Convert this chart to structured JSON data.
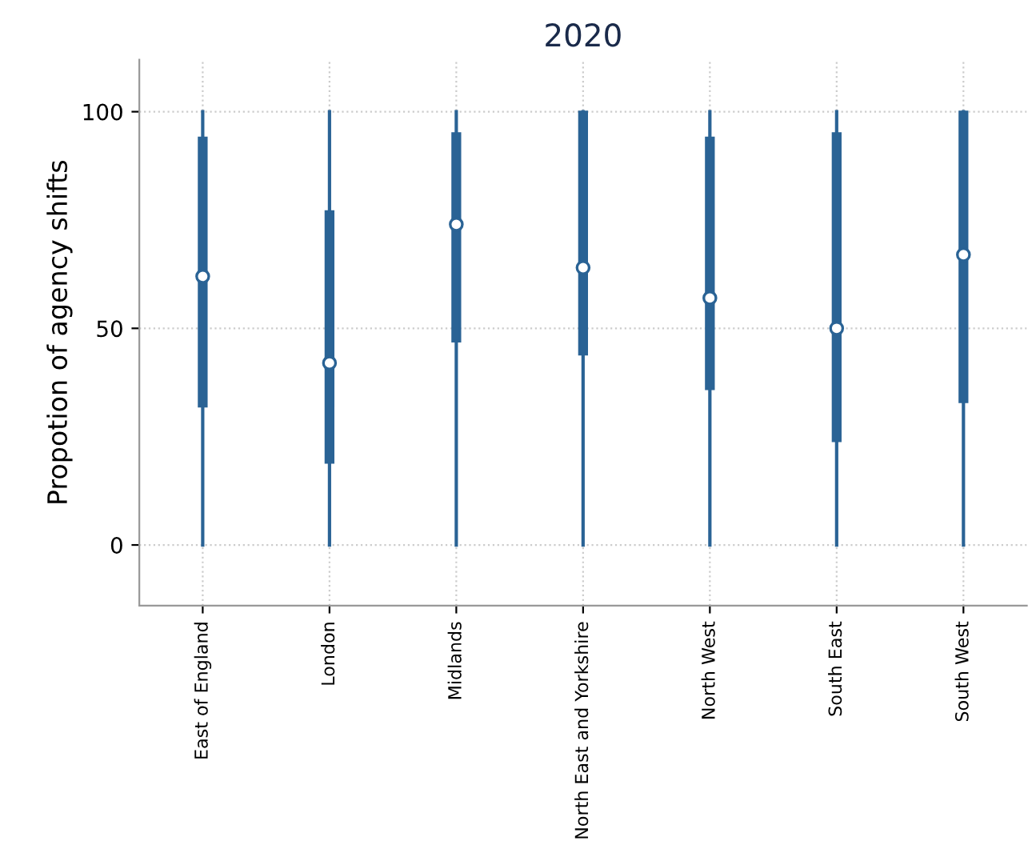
{
  "chart_data": {
    "type": "box",
    "title": "2020",
    "ylabel": "Propotion of agency shifts",
    "categories": [
      "East of England",
      "London",
      "Midlands",
      "North East and Yorkshire",
      "North West",
      "South East",
      "South West"
    ],
    "boxes": [
      {
        "low": 0,
        "q1": 32,
        "median": 62,
        "q3": 94,
        "high": 100
      },
      {
        "low": 0,
        "q1": 19,
        "median": 42,
        "q3": 77,
        "high": 100
      },
      {
        "low": 0,
        "q1": 47,
        "median": 74,
        "q3": 95,
        "high": 100
      },
      {
        "low": 0,
        "q1": 44,
        "median": 64,
        "q3": 100,
        "high": 100
      },
      {
        "low": 0,
        "q1": 36,
        "median": 57,
        "q3": 94,
        "high": 100
      },
      {
        "low": 0,
        "q1": 24,
        "median": 50,
        "q3": 95,
        "high": 100
      },
      {
        "low": 0,
        "q1": 33,
        "median": 67,
        "q3": 100,
        "high": 100
      }
    ],
    "color": "#2a6395",
    "ylim": [
      -14,
      112
    ],
    "yticks": [
      0,
      50,
      100
    ],
    "grid": true
  }
}
